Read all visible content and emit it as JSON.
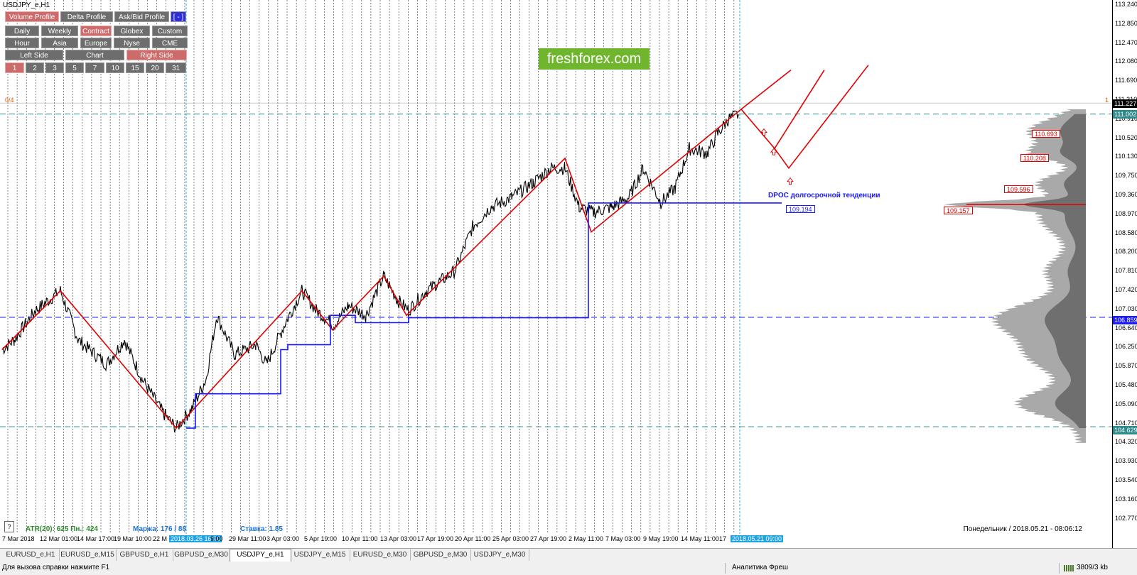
{
  "window": {
    "title": "USDJPY_e,H1"
  },
  "toolbar": {
    "row1": [
      {
        "label": "Volume Profile",
        "active": true
      },
      {
        "label": "Delta Profile",
        "active": false
      },
      {
        "label": "Ask/Bid Profile",
        "active": false
      },
      {
        "label": "[ - ]",
        "active": false
      }
    ],
    "row2": [
      {
        "label": "Daily",
        "active": false
      },
      {
        "label": "Weekly",
        "active": false
      },
      {
        "label": "Contract",
        "active": true
      },
      {
        "label": "Globex",
        "active": false
      },
      {
        "label": "Custom",
        "active": false
      }
    ],
    "row3": [
      {
        "label": "Hour",
        "active": false
      },
      {
        "label": "Asia",
        "active": false
      },
      {
        "label": "Europe",
        "active": false
      },
      {
        "label": "Nyse",
        "active": false
      },
      {
        "label": "CME",
        "active": false
      }
    ],
    "row4": [
      {
        "label": "Left Side",
        "active": false
      },
      {
        "label": "Chart",
        "active": false
      },
      {
        "label": "Right Side",
        "active": true
      }
    ],
    "row5": [
      {
        "label": "1",
        "active": true
      },
      {
        "label": "2",
        "active": false
      },
      {
        "label": "3",
        "active": false
      },
      {
        "label": "5",
        "active": false
      },
      {
        "label": "7",
        "active": false
      },
      {
        "label": "10",
        "active": false
      },
      {
        "label": "15",
        "active": false
      },
      {
        "label": "20",
        "active": false
      },
      {
        "label": "31",
        "active": false
      }
    ]
  },
  "logo": "freshforex.com",
  "corner_labels": {
    "left": "0/4",
    "right": "1"
  },
  "dpoc_label": "DPOC долгосрочной тенденции",
  "level_tags": {
    "l1": "110.693",
    "l2": "110.208",
    "l3": "109.596",
    "l4": "109.157",
    "dpoc": "109.194"
  },
  "price_axis": {
    "ticks": [
      "113.240",
      "112.850",
      "112.470",
      "112.080",
      "111.690",
      "111.310",
      "110.910",
      "110.520",
      "110.130",
      "109.750",
      "109.360",
      "108.970",
      "108.580",
      "108.200",
      "107.810",
      "107.420",
      "107.030",
      "106.640",
      "106.250",
      "105.870",
      "105.480",
      "105.090",
      "104.710",
      "104.320",
      "103.930",
      "103.540",
      "103.160",
      "102.770"
    ],
    "tags": [
      {
        "value": "111.227",
        "color": "#000000"
      },
      {
        "value": "111.002",
        "color": "#2e8b8b"
      },
      {
        "value": "106.859",
        "color": "#1a1aff"
      },
      {
        "value": "104.629",
        "color": "#2e8b8b"
      }
    ]
  },
  "info": {
    "atr": "ATR(20): 625  Пн.: 424",
    "margin": "Маржа: 176 / 88",
    "rate": "Ставка: 1.85"
  },
  "server_time": "Понедельник  /  2018.05.21  -  08:06:12",
  "date_axis": [
    {
      "label": "7 Mar 2018",
      "hl": false
    },
    {
      "label": "12 Mar 01:00",
      "hl": false
    },
    {
      "label": "14 Mar 17:00",
      "hl": false
    },
    {
      "label": "19 Mar 10:00",
      "hl": false
    },
    {
      "label": "22 M",
      "hl": false
    },
    {
      "label": "2018.03.26 16:00",
      "hl": true
    },
    {
      "label": "9:00",
      "hl": false
    },
    {
      "label": "29 Mar 11:00",
      "hl": false
    },
    {
      "label": "3 Apr 03:00",
      "hl": false
    },
    {
      "label": "5 Apr 19:00",
      "hl": false
    },
    {
      "label": "10 Apr 11:00",
      "hl": false
    },
    {
      "label": "13 Apr 03:00",
      "hl": false
    },
    {
      "label": "17 Apr 19:00",
      "hl": false
    },
    {
      "label": "20 Apr 11:00",
      "hl": false
    },
    {
      "label": "25 Apr 03:00",
      "hl": false
    },
    {
      "label": "27 Apr 19:00",
      "hl": false
    },
    {
      "label": "2 May 11:00",
      "hl": false
    },
    {
      "label": "7 May 03:00",
      "hl": false
    },
    {
      "label": "9 May 19:00",
      "hl": false
    },
    {
      "label": "14 May 11:00",
      "hl": false
    },
    {
      "label": "17",
      "hl": false
    },
    {
      "label": "2018.05.21 09:00",
      "hl": true
    }
  ],
  "tabs": [
    {
      "label": "EURUSD_e,H1",
      "active": false
    },
    {
      "label": "EURUSD_e,M15",
      "active": false
    },
    {
      "label": "GBPUSD_e,H1",
      "active": false
    },
    {
      "label": "GBPUSD_e,M30",
      "active": false
    },
    {
      "label": "USDJPY_e,H1",
      "active": true
    },
    {
      "label": "USDJPY_e,M15",
      "active": false
    },
    {
      "label": "EURUSD_e,M30",
      "active": false
    },
    {
      "label": "GBPUSD_e,M30",
      "active": false
    },
    {
      "label": "USDJPY_e,M30",
      "active": false
    }
  ],
  "status": {
    "help": "Для вызова справки нажмите F1",
    "profile": "Аналитика Фреш",
    "traffic": "3809/3 kb"
  },
  "help_box": "?"
}
